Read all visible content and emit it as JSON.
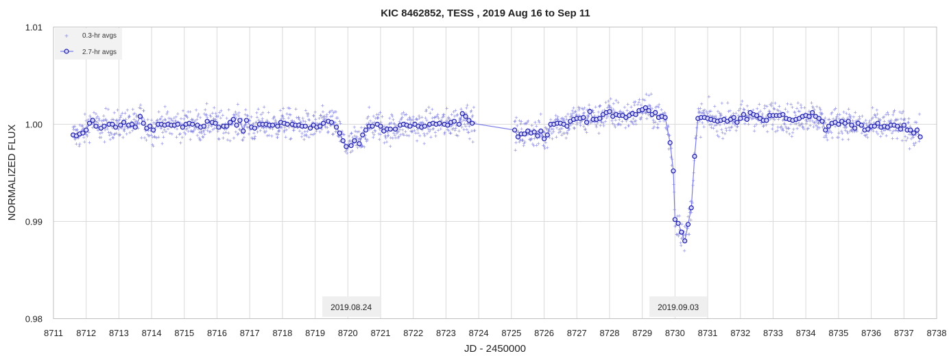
{
  "chart_data": {
    "type": "scatter",
    "title": "KIC 8462852, TESS , 2019 Aug 16 to Sep 11",
    "xlabel": "JD - 2450000",
    "ylabel": "NORMALIZED FLUX",
    "xlim": [
      8711,
      8738
    ],
    "ylim": [
      0.98,
      1.01
    ],
    "x_ticks": [
      "8711",
      "8712",
      "8713",
      "8714",
      "8715",
      "8716",
      "8717",
      "8718",
      "8719",
      "8720",
      "8721",
      "8722",
      "8723",
      "8724",
      "8725",
      "8726",
      "8727",
      "8728",
      "8729",
      "8730",
      "8731",
      "8732",
      "8733",
      "8734",
      "8735",
      "8736",
      "8737",
      "8738"
    ],
    "y_ticks": [
      "0.98",
      "0.99",
      "1.00",
      "1.01"
    ],
    "grid": true,
    "legend_position": "top-left",
    "annotations": [
      {
        "x": 8720.1,
        "text": "2019.08.24"
      },
      {
        "x": 8730.1,
        "text": "2019.09.03"
      }
    ],
    "colors": {
      "scatter": "#8c8ce0",
      "line": "#7a7ae6",
      "marker_edge": "#1a1aa8",
      "marker_fill": "#d6d6ff",
      "grid": "#d9d9d9",
      "label_box": "#efefef"
    },
    "series": [
      {
        "name": "0.3-hr avgs",
        "kind": "scatter",
        "x_range": [
          8711.6,
          8737.5
        ],
        "gap": [
          8723.9,
          8725.1
        ],
        "noise": 0.0011
      },
      {
        "name": "2.7-hr avgs",
        "kind": "line-markers",
        "points": [
          [
            8711.6,
            0.9989
          ],
          [
            8711.7,
            0.9988
          ],
          [
            8711.8,
            0.999
          ],
          [
            8711.9,
            0.9991
          ],
          [
            8712.0,
            0.9994
          ],
          [
            8712.1,
            1.0001
          ],
          [
            8712.2,
            1.0004
          ],
          [
            8712.3,
            0.9998
          ],
          [
            8712.45,
            0.9996
          ],
          [
            8712.55,
            0.9998
          ],
          [
            8712.7,
            1.0
          ],
          [
            8712.8,
            1.0
          ],
          [
            8712.9,
            0.9997
          ],
          [
            8713.05,
            0.9999
          ],
          [
            8713.15,
            1.0002
          ],
          [
            8713.3,
            0.9999
          ],
          [
            8713.4,
            1.0
          ],
          [
            8713.5,
            0.9997
          ],
          [
            8713.65,
            1.0008
          ],
          [
            8713.75,
            1.0001
          ],
          [
            8713.85,
            0.9996
          ],
          [
            8713.95,
            0.9998
          ],
          [
            8714.05,
            0.9994
          ],
          [
            8714.2,
            1.0
          ],
          [
            8714.3,
            1.0
          ],
          [
            8714.4,
            0.9999
          ],
          [
            8714.5,
            1.0
          ],
          [
            8714.6,
            0.9999
          ],
          [
            8714.7,
            0.9999
          ],
          [
            8714.8,
            1.0
          ],
          [
            8714.95,
            0.9997
          ],
          [
            8715.05,
            1.0
          ],
          [
            8715.15,
            1.0001
          ],
          [
            8715.25,
            1.0
          ],
          [
            8715.4,
            0.9999
          ],
          [
            8715.5,
            0.9997
          ],
          [
            8715.6,
            0.9998
          ],
          [
            8715.7,
            1.0003
          ],
          [
            8715.85,
            1.0002
          ],
          [
            8715.95,
            1.0001
          ],
          [
            8716.05,
            0.9997
          ],
          [
            8716.2,
            0.9998
          ],
          [
            8716.3,
            0.9998
          ],
          [
            8716.4,
            1.0002
          ],
          [
            8716.5,
            1.0005
          ],
          [
            8716.6,
            0.9999
          ],
          [
            8716.7,
            1.0004
          ],
          [
            8716.8,
            0.9993
          ],
          [
            8716.9,
            1.0004
          ],
          [
            8717.05,
            0.9997
          ],
          [
            8717.15,
            0.9996
          ],
          [
            8717.3,
            1.0
          ],
          [
            8717.4,
            1.0
          ],
          [
            8717.5,
            1.0
          ],
          [
            8717.6,
            0.9999
          ],
          [
            8717.7,
            0.9999
          ],
          [
            8717.85,
            0.9998
          ],
          [
            8717.95,
            1.0002
          ],
          [
            8718.05,
            1.0001
          ],
          [
            8718.15,
            1.0
          ],
          [
            8718.3,
            1.0
          ],
          [
            8718.4,
            0.9999
          ],
          [
            8718.5,
            0.9999
          ],
          [
            8718.6,
            0.9998
          ],
          [
            8718.7,
            0.9998
          ],
          [
            8718.85,
            0.9996
          ],
          [
            8718.95,
            0.9999
          ],
          [
            8719.05,
            0.9997
          ],
          [
            8719.15,
            0.9998
          ],
          [
            8719.25,
            1.0001
          ],
          [
            8719.4,
            1.0003
          ],
          [
            8719.5,
            1.0002
          ],
          [
            8719.65,
            0.9997
          ],
          [
            8719.75,
            0.9991
          ],
          [
            8719.85,
            0.9983
          ],
          [
            8719.95,
            0.9977
          ],
          [
            8720.1,
            0.9978
          ],
          [
            8720.2,
            0.9983
          ],
          [
            8720.35,
            0.998
          ],
          [
            8720.45,
            0.9989
          ],
          [
            8720.55,
            0.9994
          ],
          [
            8720.65,
            0.9998
          ],
          [
            8720.75,
            0.9998
          ],
          [
            8720.9,
            1.0
          ],
          [
            8721.0,
            0.9998
          ],
          [
            8721.1,
            0.9993
          ],
          [
            8721.2,
            0.9995
          ],
          [
            8721.3,
            0.9995
          ],
          [
            8721.45,
            0.9995
          ],
          [
            8721.6,
            0.9999
          ],
          [
            8721.7,
            1.0
          ],
          [
            8721.8,
            0.9999
          ],
          [
            8721.9,
            0.9998
          ],
          [
            8722.05,
            1.0
          ],
          [
            8722.15,
            0.9998
          ],
          [
            8722.25,
            0.9997
          ],
          [
            8722.35,
            0.9998
          ],
          [
            8722.5,
            1.0
          ],
          [
            8722.6,
            1.0001
          ],
          [
            8722.7,
            1.0
          ],
          [
            8722.8,
            1.0001
          ],
          [
            8722.95,
            1.0
          ],
          [
            8723.05,
            0.9999
          ],
          [
            8723.15,
            1.0002
          ],
          [
            8723.25,
            1.0003
          ],
          [
            8723.4,
            1.0
          ],
          [
            8723.5,
            1.0011
          ],
          [
            8723.6,
            1.0008
          ],
          [
            8723.7,
            1.0004
          ],
          [
            8723.8,
            1.0001
          ],
          [
            8725.1,
            0.9994
          ],
          [
            8725.2,
            0.9987
          ],
          [
            8725.3,
            0.999
          ],
          [
            8725.4,
            0.999
          ],
          [
            8725.5,
            0.9993
          ],
          [
            8725.6,
            0.9991
          ],
          [
            8725.7,
            0.9992
          ],
          [
            8725.8,
            0.9988
          ],
          [
            8725.9,
            0.9993
          ],
          [
            8726.0,
            0.9985
          ],
          [
            8726.1,
            0.9989
          ],
          [
            8726.2,
            1.0
          ],
          [
            8726.3,
            1.0
          ],
          [
            8726.4,
            1.0001
          ],
          [
            8726.5,
            1.0001
          ],
          [
            8726.6,
            1.0
          ],
          [
            8726.7,
            0.9998
          ],
          [
            8726.8,
            1.0003
          ],
          [
            8726.9,
            1.0005
          ],
          [
            8727.0,
            1.0006
          ],
          [
            8727.1,
            1.0006
          ],
          [
            8727.2,
            1.0007
          ],
          [
            8727.3,
            1.0002
          ],
          [
            8727.4,
            1.0013
          ],
          [
            8727.5,
            1.0005
          ],
          [
            8727.6,
            1.0005
          ],
          [
            8727.7,
            1.0006
          ],
          [
            8727.8,
            1.001
          ],
          [
            8727.9,
            1.0012
          ],
          [
            8728.0,
            1.0013
          ],
          [
            8728.1,
            1.0008
          ],
          [
            8728.2,
            1.001
          ],
          [
            8728.3,
            1.0009
          ],
          [
            8728.4,
            1.0009
          ],
          [
            8728.5,
            1.0007
          ],
          [
            8728.6,
            1.0009
          ],
          [
            8728.7,
            1.0011
          ],
          [
            8728.8,
            1.001
          ],
          [
            8728.9,
            1.0014
          ],
          [
            8729.0,
            1.0015
          ],
          [
            8729.1,
            1.0017
          ],
          [
            8729.2,
            1.0014
          ],
          [
            8729.3,
            1.001
          ],
          [
            8729.4,
            1.0012
          ],
          [
            8729.5,
            1.0007
          ],
          [
            8729.6,
            1.0008
          ],
          [
            8729.7,
            1.0007
          ],
          [
            8729.85,
            0.9981
          ],
          [
            8729.95,
            0.9952
          ],
          [
            8730.0,
            0.9902
          ],
          [
            8730.1,
            0.9898
          ],
          [
            8730.2,
            0.9889
          ],
          [
            8730.3,
            0.988
          ],
          [
            8730.4,
            0.9897
          ],
          [
            8730.5,
            0.9914
          ],
          [
            8730.6,
            0.9967
          ],
          [
            8730.7,
            1.0006
          ],
          [
            8730.8,
            1.0007
          ],
          [
            8730.9,
            1.0007
          ],
          [
            8731.0,
            1.0006
          ],
          [
            8731.1,
            1.0005
          ],
          [
            8731.2,
            1.0004
          ],
          [
            8731.3,
            1.0003
          ],
          [
            8731.4,
            1.0004
          ],
          [
            8731.5,
            1.0005
          ],
          [
            8731.6,
            1.0003
          ],
          [
            8731.7,
            1.0005
          ],
          [
            8731.8,
            1.0007
          ],
          [
            8731.9,
            1.0002
          ],
          [
            8732.0,
            1.0006
          ],
          [
            8732.1,
            1.001
          ],
          [
            8732.2,
            1.0005
          ],
          [
            8732.3,
            1.0012
          ],
          [
            8732.4,
            1.001
          ],
          [
            8732.5,
            1.0009
          ],
          [
            8732.6,
            1.0006
          ],
          [
            8732.7,
            1.0004
          ],
          [
            8732.8,
            1.0004
          ],
          [
            8732.9,
            1.0009
          ],
          [
            8733.0,
            1.0009
          ],
          [
            8733.1,
            1.0009
          ],
          [
            8733.2,
            1.0009
          ],
          [
            8733.3,
            1.001
          ],
          [
            8733.4,
            1.0006
          ],
          [
            8733.5,
            1.0005
          ],
          [
            8733.6,
            1.0004
          ],
          [
            8733.7,
            1.0005
          ],
          [
            8733.8,
            1.0006
          ],
          [
            8733.9,
            1.0008
          ],
          [
            8734.0,
            1.0009
          ],
          [
            8734.1,
            1.0008
          ],
          [
            8734.2,
            1.0012
          ],
          [
            8734.3,
            1.0008
          ],
          [
            8734.4,
            1.0006
          ],
          [
            8734.5,
            1.0003
          ],
          [
            8734.6,
            0.9994
          ],
          [
            8734.7,
            0.9998
          ],
          [
            8734.8,
            1.0001
          ],
          [
            8734.9,
            1.0002
          ],
          [
            8735.0,
            1.0
          ],
          [
            8735.1,
            1.0003
          ],
          [
            8735.2,
            1.0001
          ],
          [
            8735.3,
            1.0003
          ],
          [
            8735.4,
            0.9999
          ],
          [
            8735.5,
            0.9996
          ],
          [
            8735.6,
            1.0001
          ],
          [
            8735.7,
            0.9999
          ],
          [
            8735.8,
            0.9994
          ],
          [
            8735.9,
            0.9995
          ],
          [
            8736.0,
            0.9998
          ],
          [
            8736.1,
            0.9998
          ],
          [
            8736.2,
            1.0001
          ],
          [
            8736.3,
            0.9997
          ],
          [
            8736.4,
            0.9998
          ],
          [
            8736.5,
            0.9997
          ],
          [
            8736.6,
            0.9999
          ],
          [
            8736.7,
            0.9999
          ],
          [
            8736.8,
            0.9998
          ],
          [
            8736.9,
            0.9995
          ],
          [
            8737.0,
            0.9999
          ],
          [
            8737.1,
            0.9994
          ],
          [
            8737.2,
            0.9994
          ],
          [
            8737.3,
            0.9991
          ],
          [
            8737.4,
            0.9994
          ],
          [
            8737.5,
            0.9987
          ]
        ]
      }
    ]
  }
}
